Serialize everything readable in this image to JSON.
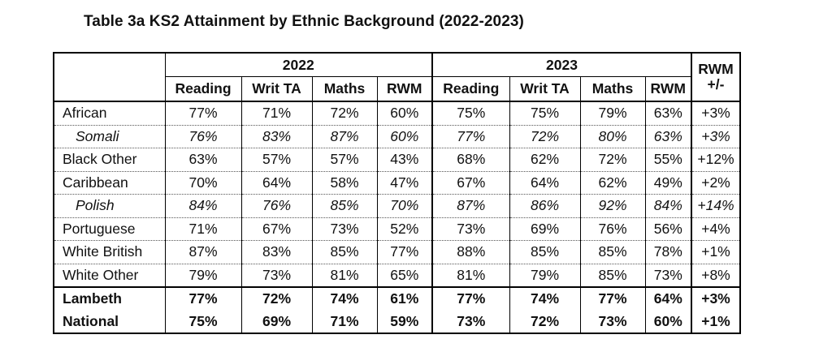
{
  "title": "Table 3a KS2 Attainment by Ethnic Background (2022-2023)",
  "years": [
    "2022",
    "2023"
  ],
  "columns": [
    "Reading",
    "Writ TA",
    "Maths",
    "RWM"
  ],
  "change_header": [
    "RWM",
    "+/-"
  ],
  "rows": [
    {
      "name": "African",
      "sub": false,
      "bold": false,
      "y2022": [
        "77%",
        "71%",
        "72%",
        "60%"
      ],
      "y2023": [
        "75%",
        "75%",
        "79%",
        "63%"
      ],
      "change": "+3%"
    },
    {
      "name": "Somali",
      "sub": true,
      "bold": false,
      "y2022": [
        "76%",
        "83%",
        "87%",
        "60%"
      ],
      "y2023": [
        "77%",
        "72%",
        "80%",
        "63%"
      ],
      "change": "+3%"
    },
    {
      "name": "Black Other",
      "sub": false,
      "bold": false,
      "y2022": [
        "63%",
        "57%",
        "57%",
        "43%"
      ],
      "y2023": [
        "68%",
        "62%",
        "72%",
        "55%"
      ],
      "change": "+12%"
    },
    {
      "name": "Caribbean",
      "sub": false,
      "bold": false,
      "y2022": [
        "70%",
        "64%",
        "58%",
        "47%"
      ],
      "y2023": [
        "67%",
        "64%",
        "62%",
        "49%"
      ],
      "change": "+2%"
    },
    {
      "name": "Polish",
      "sub": true,
      "bold": false,
      "y2022": [
        "84%",
        "76%",
        "85%",
        "70%"
      ],
      "y2023": [
        "87%",
        "86%",
        "92%",
        "84%"
      ],
      "change": "+14%"
    },
    {
      "name": "Portuguese",
      "sub": false,
      "bold": false,
      "y2022": [
        "71%",
        "67%",
        "73%",
        "52%"
      ],
      "y2023": [
        "73%",
        "69%",
        "76%",
        "56%"
      ],
      "change": "+4%"
    },
    {
      "name": "White British",
      "sub": false,
      "bold": false,
      "y2022": [
        "87%",
        "83%",
        "85%",
        "77%"
      ],
      "y2023": [
        "88%",
        "85%",
        "85%",
        "78%"
      ],
      "change": "+1%"
    },
    {
      "name": "White Other",
      "sub": false,
      "bold": false,
      "y2022": [
        "79%",
        "73%",
        "81%",
        "65%"
      ],
      "y2023": [
        "81%",
        "79%",
        "85%",
        "73%"
      ],
      "change": "+8%"
    },
    {
      "name": "Lambeth",
      "sub": false,
      "bold": true,
      "y2022": [
        "77%",
        "72%",
        "74%",
        "61%"
      ],
      "y2023": [
        "77%",
        "74%",
        "77%",
        "64%"
      ],
      "change": "+3%"
    },
    {
      "name": "National",
      "sub": false,
      "bold": true,
      "y2022": [
        "75%",
        "69%",
        "71%",
        "59%"
      ],
      "y2023": [
        "73%",
        "72%",
        "73%",
        "60%"
      ],
      "change": "+1%"
    }
  ]
}
